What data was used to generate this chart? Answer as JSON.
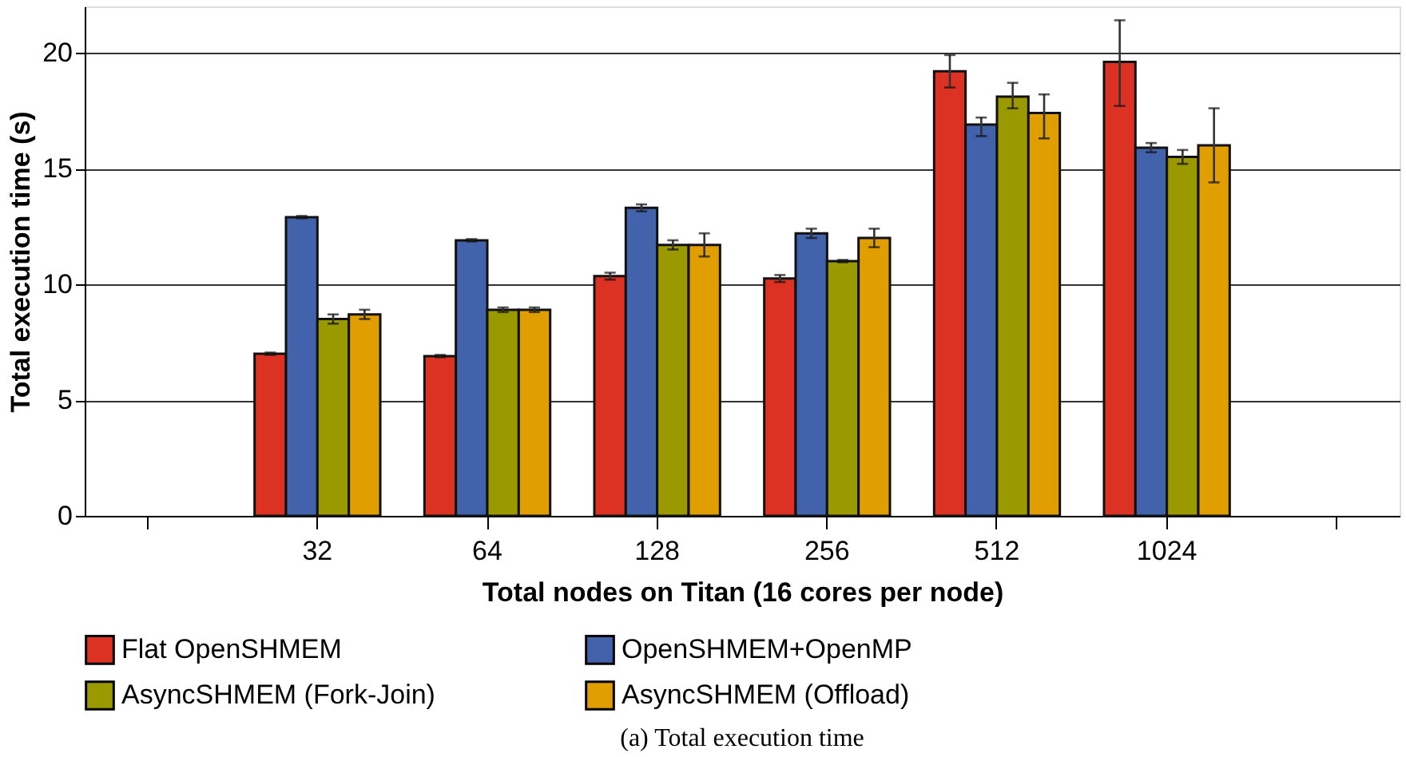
{
  "chart_data": {
    "type": "bar",
    "xlabel": "Total nodes on Titan (16 cores per node)",
    "ylabel": "Total execution time (s)",
    "categories": [
      null,
      "32",
      "64",
      "128",
      "256",
      "512",
      "1024",
      null
    ],
    "series": [
      {
        "name": "Flat OpenSHMEM",
        "color": "#dc3224",
        "values": [
          null,
          7.0,
          6.9,
          10.35,
          10.25,
          19.2,
          19.6,
          null
        ],
        "errors": [
          null,
          0.05,
          0.05,
          0.15,
          0.15,
          [
            18.5,
            19.9
          ],
          [
            17.7,
            21.4
          ],
          null
        ]
      },
      {
        "name": "OpenSHMEM+OpenMP",
        "color": "#4262ab",
        "values": [
          null,
          12.9,
          11.9,
          13.3,
          12.2,
          16.9,
          15.9,
          null
        ],
        "errors": [
          null,
          0.05,
          0.05,
          0.15,
          0.2,
          [
            16.4,
            17.2
          ],
          0.2,
          null
        ]
      },
      {
        "name": "AsyncSHMEM (Fork-Join)",
        "color": "#9a9a00",
        "values": [
          null,
          8.5,
          8.9,
          11.7,
          11.0,
          18.1,
          15.5,
          null
        ],
        "errors": [
          null,
          0.2,
          0.1,
          0.2,
          0.05,
          [
            17.6,
            18.7
          ],
          0.3,
          null
        ]
      },
      {
        "name": "AsyncSHMEM (Offload)",
        "color": "#e09e00",
        "values": [
          null,
          8.7,
          8.9,
          11.7,
          12.0,
          17.4,
          16.0,
          null
        ],
        "errors": [
          null,
          0.2,
          0.1,
          0.5,
          0.4,
          [
            16.3,
            18.2
          ],
          [
            14.4,
            17.6
          ],
          null
        ]
      }
    ],
    "ylim": [
      0,
      22
    ],
    "yticks": [
      0,
      5,
      10,
      15,
      20
    ],
    "grid": "y",
    "legend": "bottom",
    "annotations": [
      "(a) Total execution time"
    ]
  }
}
